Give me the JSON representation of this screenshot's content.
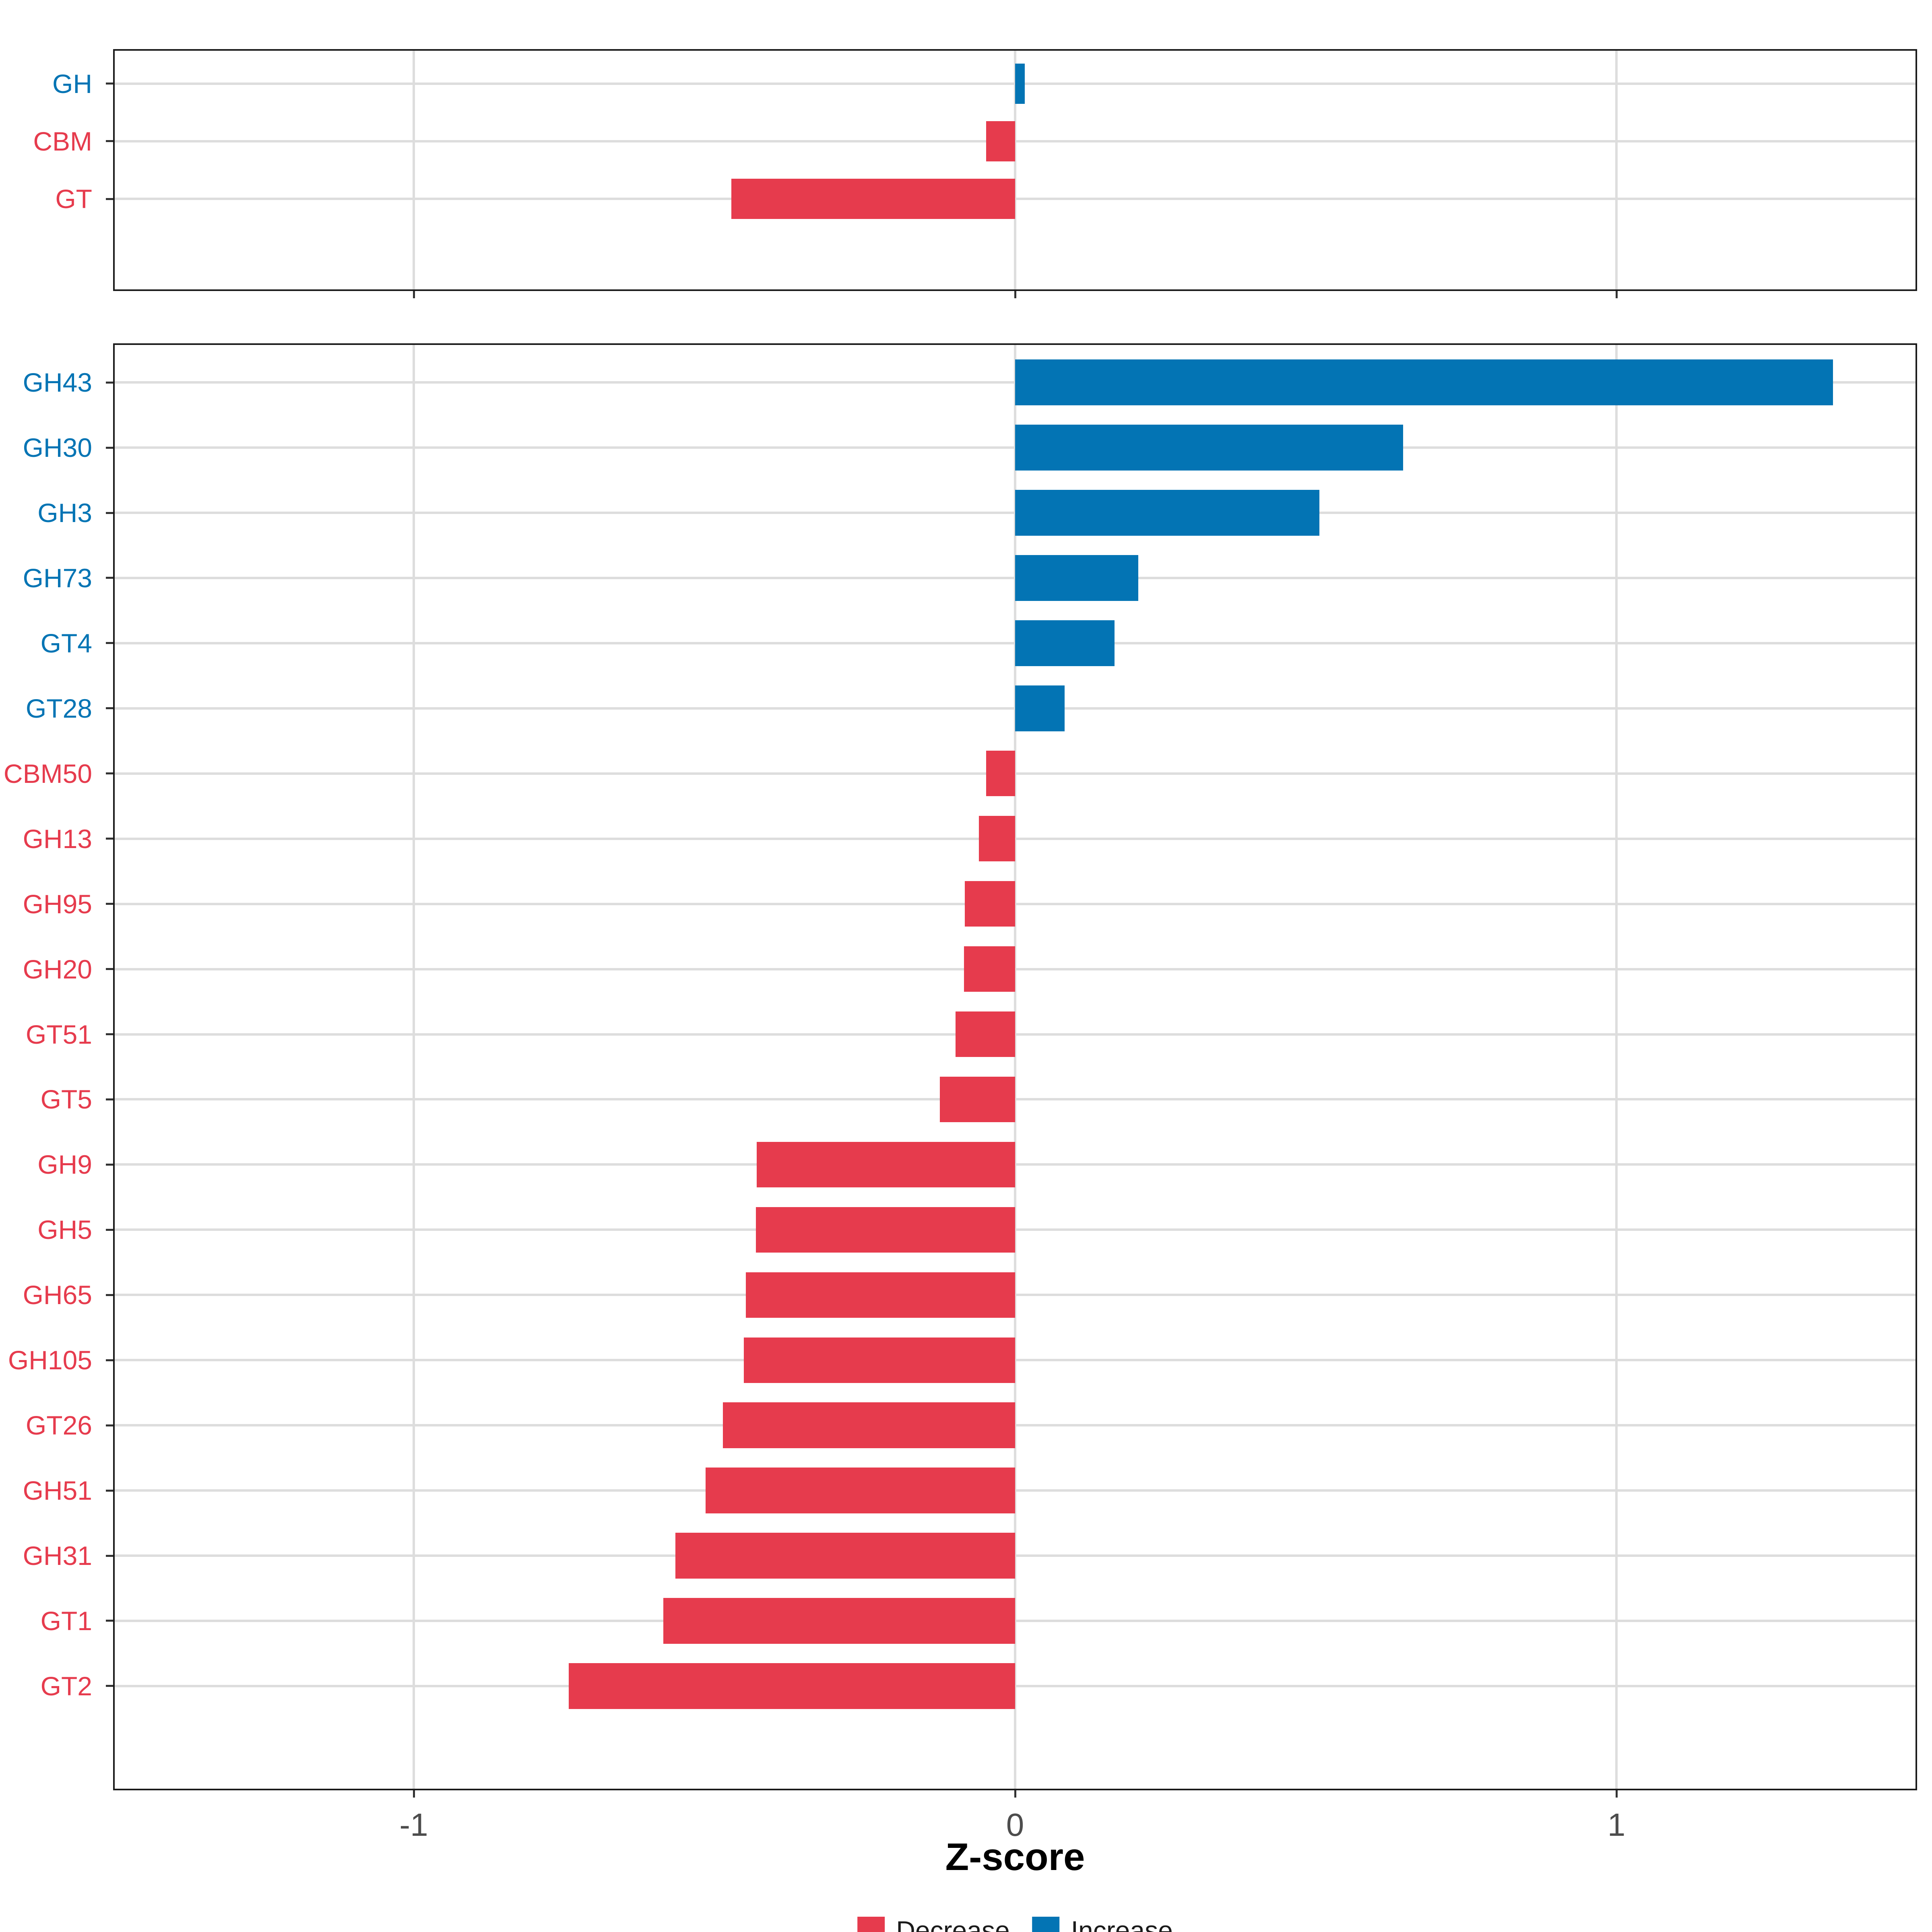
{
  "chart_data": [
    {
      "type": "bar",
      "orientation": "horizontal",
      "panel": "top",
      "title": "",
      "xlabel": "",
      "ylabel": "",
      "categories": [
        "GH",
        "CBM",
        "GT"
      ],
      "values": [
        0.016,
        -0.048,
        -0.472
      ],
      "directions": [
        "Increase",
        "Decrease",
        "Decrease"
      ],
      "xlim": [
        -1.5,
        1.5
      ],
      "x_ticks": [
        -1,
        0,
        1
      ],
      "x_tick_labels": [
        "-1",
        "0",
        "1"
      ],
      "show_x_tick_labels": false,
      "grid": true,
      "legend_position": "none",
      "colors": {
        "Decrease": "#E63B4D",
        "Increase": "#0374B4"
      }
    },
    {
      "type": "bar",
      "orientation": "horizontal",
      "panel": "bottom",
      "title": "",
      "xlabel": "Z-score",
      "ylabel": "",
      "categories": [
        "GH43",
        "GH30",
        "GH3",
        "GH73",
        "GT4",
        "GT28",
        "CBM50",
        "GH13",
        "GH95",
        "GH20",
        "GT51",
        "GT5",
        "GH9",
        "GH5",
        "GH65",
        "GH105",
        "GT26",
        "GH51",
        "GH31",
        "GT1",
        "GT2"
      ],
      "values": [
        1.36,
        0.645,
        0.506,
        0.205,
        0.165,
        0.082,
        -0.048,
        -0.06,
        -0.084,
        -0.085,
        -0.099,
        -0.125,
        -0.43,
        -0.431,
        -0.448,
        -0.451,
        -0.486,
        -0.515,
        -0.565,
        -0.585,
        -0.742
      ],
      "directions": [
        "Increase",
        "Increase",
        "Increase",
        "Increase",
        "Increase",
        "Increase",
        "Decrease",
        "Decrease",
        "Decrease",
        "Decrease",
        "Decrease",
        "Decrease",
        "Decrease",
        "Decrease",
        "Decrease",
        "Decrease",
        "Decrease",
        "Decrease",
        "Decrease",
        "Decrease",
        "Decrease"
      ],
      "xlim": [
        -1.5,
        1.5
      ],
      "x_ticks": [
        -1,
        0,
        1
      ],
      "x_tick_labels": [
        "-1",
        "0",
        "1"
      ],
      "show_x_tick_labels": true,
      "grid": true,
      "legend_position": "bottom",
      "colors": {
        "Decrease": "#E63B4D",
        "Increase": "#0374B4"
      }
    }
  ],
  "legend": {
    "items": [
      {
        "label": "Decrease",
        "color": "#E63B4D"
      },
      {
        "label": "Increase",
        "color": "#0374B4"
      }
    ]
  },
  "style": {
    "grid_color": "#dddddd",
    "border_color": "#1a1a1a",
    "tick_color": "#333333",
    "x_tick_label_color": "#4d4d4d",
    "background": "#ffffff"
  }
}
